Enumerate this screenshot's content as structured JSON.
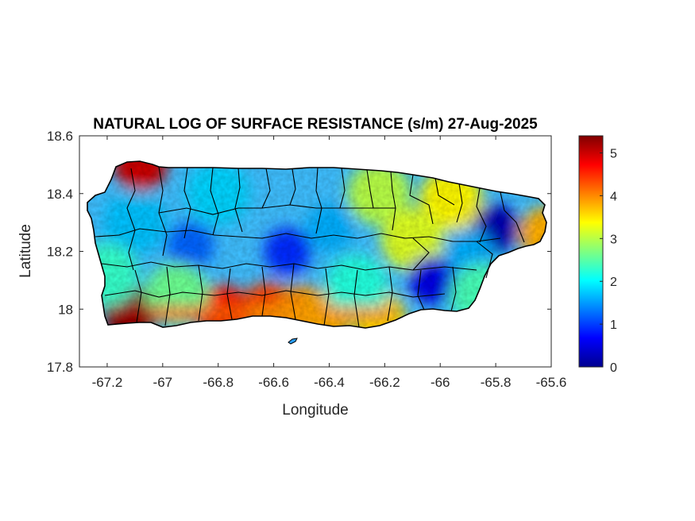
{
  "title": "NATURAL LOG OF SURFACE RESISTANCE (s/m) 27-Aug-2025",
  "xlabel": "Longitude",
  "ylabel": "Latitude",
  "x_ticks": [
    "-67.2",
    "-67",
    "-66.8",
    "-66.6",
    "-66.4",
    "-66.2",
    "-66",
    "-65.8",
    "-65.6"
  ],
  "y_ticks": [
    "17.8",
    "18",
    "18.2",
    "18.4",
    "18.6"
  ],
  "colorbar_ticks": [
    "0",
    "1",
    "2",
    "3",
    "4",
    "5"
  ],
  "chart_data": {
    "type": "heatmap",
    "variable": "natural log of surface resistance (s/m)",
    "date": "27-Aug-2025",
    "xlim": [
      -67.3,
      -65.6
    ],
    "ylim": [
      17.8,
      18.6
    ],
    "clim": [
      0,
      5.4
    ],
    "colormap": "jet",
    "field": [
      {
        "lon": -67.08,
        "lat": 18.5,
        "value": 5.0
      },
      {
        "lon": -67.12,
        "lat": 17.99,
        "value": 5.4
      },
      {
        "lon": -66.78,
        "lat": 17.99,
        "value": 4.6
      },
      {
        "lon": -66.62,
        "lat": 18.0,
        "value": 4.4
      },
      {
        "lon": -66.5,
        "lat": 17.99,
        "value": 4.0
      },
      {
        "lon": -66.42,
        "lat": 17.97,
        "value": 3.8
      },
      {
        "lon": -66.22,
        "lat": 17.97,
        "value": 3.6
      },
      {
        "lon": -65.62,
        "lat": 18.26,
        "value": 3.8
      },
      {
        "lon": -65.96,
        "lat": 18.38,
        "value": 3.4
      },
      {
        "lon": -66.22,
        "lat": 18.4,
        "value": 3.0
      },
      {
        "lon": -66.1,
        "lat": 18.24,
        "value": 3.2
      },
      {
        "lon": -65.8,
        "lat": 18.28,
        "value": 0.2
      },
      {
        "lon": -66.03,
        "lat": 18.1,
        "value": 0.5
      },
      {
        "lon": -66.55,
        "lat": 18.2,
        "value": 0.9
      },
      {
        "lon": -66.9,
        "lat": 18.22,
        "value": 1.2
      },
      {
        "lon": -67.1,
        "lat": 18.3,
        "value": 1.7
      },
      {
        "lon": -66.8,
        "lat": 18.4,
        "value": 1.8
      },
      {
        "lon": -66.4,
        "lat": 18.28,
        "value": 1.6
      },
      {
        "lon": -66.3,
        "lat": 18.08,
        "value": 2.2
      },
      {
        "lon": -65.9,
        "lat": 18.2,
        "value": 1.6
      },
      {
        "lon": -67.2,
        "lat": 18.12,
        "value": 2.3
      },
      {
        "lon": -66.95,
        "lat": 18.05,
        "value": 2.6
      },
      {
        "lon": -65.85,
        "lat": 18.05,
        "value": 2.4
      }
    ]
  }
}
